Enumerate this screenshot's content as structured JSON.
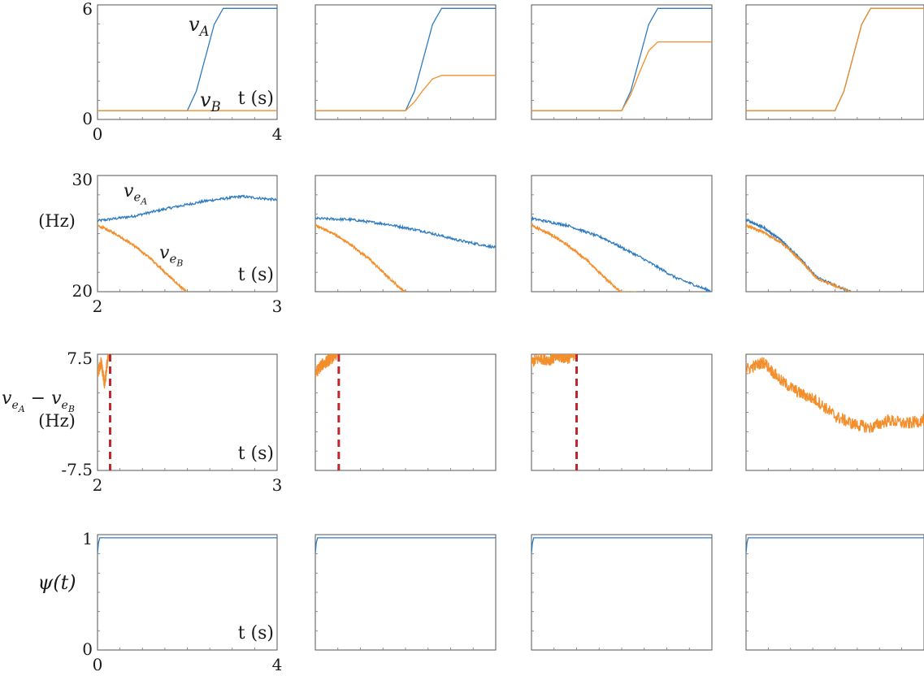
{
  "colors": {
    "series_a": "#2f7bbf",
    "series_b": "#f28e2b",
    "threshold": "#c0262d",
    "axis": "#555555"
  },
  "labels": {
    "time_axis": "t (s)",
    "velocity_a": "v_A",
    "velocity_b": "v_B",
    "freq_a": "v_{e_A}",
    "freq_b": "v_{e_B}",
    "hz": "(Hz)",
    "diff": "v_{e_A} − v_{e_B}",
    "psi": "ψ(t)"
  },
  "chart_data": [
    {
      "type": "line",
      "row": 1,
      "col": 1,
      "xlim": [
        0,
        4
      ],
      "ylim": [
        -0.5,
        6
      ],
      "xticks": [
        "0",
        "4"
      ],
      "yticks": [
        "0",
        "6"
      ],
      "series": [
        {
          "name": "v_A",
          "x": [
            0,
            2.0,
            2.2,
            2.4,
            2.6,
            2.8,
            3.0,
            4
          ],
          "values": [
            0,
            0,
            1.1,
            3.0,
            4.9,
            5.8,
            5.8,
            5.8
          ]
        },
        {
          "name": "v_B",
          "x": [
            0,
            4
          ],
          "values": [
            0,
            0
          ]
        }
      ]
    },
    {
      "type": "line",
      "row": 1,
      "col": 2,
      "xlim": [
        0,
        4
      ],
      "ylim": [
        -0.5,
        6
      ],
      "series": [
        {
          "name": "v_A",
          "x": [
            0,
            2.0,
            2.2,
            2.4,
            2.6,
            2.8,
            3.0,
            4
          ],
          "values": [
            0,
            0,
            1.1,
            3.0,
            4.9,
            5.8,
            5.8,
            5.8
          ]
        },
        {
          "name": "v_B",
          "x": [
            0,
            2.0,
            2.2,
            2.4,
            2.6,
            2.8,
            3.0,
            4
          ],
          "values": [
            0,
            0,
            0.5,
            1.2,
            1.8,
            2.0,
            2.0,
            2.0
          ]
        }
      ]
    },
    {
      "type": "line",
      "row": 1,
      "col": 3,
      "xlim": [
        0,
        4
      ],
      "ylim": [
        -0.5,
        6
      ],
      "series": [
        {
          "name": "v_A",
          "x": [
            0,
            2.0,
            2.2,
            2.4,
            2.6,
            2.8,
            3.0,
            4
          ],
          "values": [
            0,
            0,
            1.1,
            3.0,
            4.9,
            5.8,
            5.8,
            5.8
          ]
        },
        {
          "name": "v_B",
          "x": [
            0,
            2.0,
            2.2,
            2.4,
            2.6,
            2.8,
            3.0,
            4
          ],
          "values": [
            0,
            0,
            0.9,
            2.2,
            3.4,
            3.9,
            3.9,
            3.9
          ]
        }
      ]
    },
    {
      "type": "line",
      "row": 1,
      "col": 4,
      "xlim": [
        0,
        4
      ],
      "ylim": [
        -0.5,
        6
      ],
      "series": [
        {
          "name": "v_A",
          "x": [
            0,
            2.0,
            2.2,
            2.4,
            2.6,
            2.8,
            3.0,
            4
          ],
          "values": [
            0,
            0,
            1.1,
            3.0,
            4.9,
            5.8,
            5.8,
            5.8
          ]
        },
        {
          "name": "v_B",
          "x": [
            0,
            2.0,
            2.2,
            2.4,
            2.6,
            2.8,
            3.0,
            4
          ],
          "values": [
            0,
            0,
            1.1,
            3.0,
            4.9,
            5.8,
            5.8,
            5.8
          ]
        }
      ]
    },
    {
      "type": "line",
      "row": 2,
      "col": 1,
      "xlim": [
        2,
        3
      ],
      "ylim": [
        20,
        30
      ],
      "xticks": [
        "2",
        "3"
      ],
      "yticks": [
        "20",
        "30"
      ],
      "series": [
        {
          "name": "v_e_A",
          "x": [
            2.0,
            2.2,
            2.4,
            2.6,
            2.8,
            3.0
          ],
          "values": [
            26.1,
            26.5,
            27.2,
            27.8,
            28.2,
            27.9
          ]
        },
        {
          "name": "v_e_B",
          "x": [
            2.0,
            2.1,
            2.2,
            2.3,
            2.4,
            2.5
          ],
          "values": [
            25.7,
            25.0,
            24.0,
            22.8,
            21.3,
            19.9
          ]
        }
      ]
    },
    {
      "type": "line",
      "row": 2,
      "col": 2,
      "xlim": [
        2,
        3
      ],
      "ylim": [
        20,
        30
      ],
      "series": [
        {
          "name": "v_e_A",
          "x": [
            2.0,
            2.2,
            2.4,
            2.6,
            2.8,
            3.0
          ],
          "values": [
            26.3,
            26.2,
            25.8,
            25.2,
            24.4,
            23.8
          ]
        },
        {
          "name": "v_e_B",
          "x": [
            2.0,
            2.1,
            2.2,
            2.3,
            2.4,
            2.5
          ],
          "values": [
            25.7,
            25.0,
            24.0,
            22.8,
            21.3,
            19.9
          ]
        }
      ]
    },
    {
      "type": "line",
      "row": 2,
      "col": 3,
      "xlim": [
        2,
        3
      ],
      "ylim": [
        20,
        30
      ],
      "series": [
        {
          "name": "v_e_A",
          "x": [
            2.0,
            2.2,
            2.4,
            2.6,
            2.8,
            3.0
          ],
          "values": [
            26.3,
            25.7,
            24.6,
            23.0,
            21.2,
            20.0
          ]
        },
        {
          "name": "v_e_B",
          "x": [
            2.0,
            2.1,
            2.2,
            2.3,
            2.4,
            2.5,
            2.58
          ],
          "values": [
            25.7,
            25.0,
            24.0,
            22.8,
            21.3,
            19.9,
            19.9
          ]
        }
      ]
    },
    {
      "type": "line",
      "row": 2,
      "col": 4,
      "xlim": [
        2,
        3
      ],
      "ylim": [
        20,
        30
      ],
      "series": [
        {
          "name": "v_e_A",
          "x": [
            2.0,
            2.1,
            2.2,
            2.3,
            2.4,
            2.6
          ],
          "values": [
            26.2,
            25.5,
            24.4,
            22.9,
            21.2,
            19.9
          ]
        },
        {
          "name": "v_e_B",
          "x": [
            2.0,
            2.1,
            2.2,
            2.3,
            2.4,
            2.6
          ],
          "values": [
            25.7,
            25.1,
            24.2,
            22.8,
            21.1,
            19.9
          ]
        }
      ]
    },
    {
      "type": "line",
      "row": 3,
      "col": 1,
      "xlim": [
        2,
        3
      ],
      "ylim": [
        -7.5,
        7.5
      ],
      "xticks": [
        "2",
        "3"
      ],
      "yticks": [
        "-7.5",
        "7.5"
      ],
      "threshold_x": 2.07,
      "series": [
        {
          "name": "v_e_A - v_e_B",
          "x": [
            2.0,
            2.02,
            2.04,
            2.06
          ],
          "values": [
            5.0,
            6.5,
            3.5,
            7.5
          ]
        }
      ]
    },
    {
      "type": "line",
      "row": 3,
      "col": 2,
      "xlim": [
        2,
        3
      ],
      "ylim": [
        -7.5,
        7.5
      ],
      "threshold_x": 2.13,
      "series": [
        {
          "name": "v_e_A - v_e_B",
          "x": [
            2.0,
            2.03,
            2.06,
            2.09,
            2.12
          ],
          "values": [
            5.0,
            6.0,
            6.5,
            7.0,
            7.5
          ]
        }
      ]
    },
    {
      "type": "line",
      "row": 3,
      "col": 3,
      "xlim": [
        2,
        3
      ],
      "ylim": [
        -7.5,
        7.5
      ],
      "threshold_x": 2.25,
      "series": [
        {
          "name": "v_e_A - v_e_B",
          "x": [
            2.0,
            2.05,
            2.1,
            2.15,
            2.2,
            2.24
          ],
          "values": [
            6.5,
            7.0,
            6.8,
            7.2,
            7.0,
            7.5
          ]
        }
      ]
    },
    {
      "type": "line",
      "row": 3,
      "col": 4,
      "xlim": [
        2,
        3
      ],
      "ylim": [
        -7.5,
        7.5
      ],
      "series": [
        {
          "name": "v_e_A - v_e_B",
          "x": [
            2.0,
            2.1,
            2.2,
            2.3,
            2.4,
            2.5,
            2.6,
            2.7,
            2.8,
            2.9,
            3.0
          ],
          "values": [
            5.5,
            6.5,
            4.0,
            2.5,
            1.5,
            -0.5,
            -1.5,
            -2.0,
            -1.0,
            -1.5,
            -1.0
          ]
        }
      ]
    },
    {
      "type": "line",
      "row": 4,
      "col": 1,
      "xlim": [
        0,
        4
      ],
      "ylim": [
        -0.1,
        1
      ],
      "xticks": [
        "0",
        "4"
      ],
      "yticks": [
        "0",
        "1"
      ],
      "series": [
        {
          "name": "psi",
          "x": [
            0,
            0.02,
            0.05,
            0.1,
            4
          ],
          "values": [
            0.82,
            0.92,
            0.97,
            0.97,
            0.97
          ]
        }
      ]
    },
    {
      "type": "line",
      "row": 4,
      "col": 2,
      "xlim": [
        0,
        4
      ],
      "ylim": [
        -0.1,
        1
      ],
      "series": [
        {
          "name": "psi",
          "x": [
            0,
            0.02,
            0.05,
            0.1,
            4
          ],
          "values": [
            0.82,
            0.92,
            0.97,
            0.97,
            0.97
          ]
        }
      ]
    },
    {
      "type": "line",
      "row": 4,
      "col": 3,
      "xlim": [
        0,
        4
      ],
      "ylim": [
        -0.1,
        1
      ],
      "series": [
        {
          "name": "psi",
          "x": [
            0,
            0.02,
            0.05,
            0.1,
            4
          ],
          "values": [
            0.82,
            0.92,
            0.97,
            0.97,
            0.97
          ]
        }
      ]
    },
    {
      "type": "line",
      "row": 4,
      "col": 4,
      "xlim": [
        0,
        4
      ],
      "ylim": [
        -0.1,
        1
      ],
      "series": [
        {
          "name": "psi",
          "x": [
            0,
            0.02,
            0.05,
            0.1,
            4
          ],
          "values": [
            0.82,
            0.92,
            0.97,
            0.97,
            0.97
          ]
        }
      ]
    }
  ]
}
